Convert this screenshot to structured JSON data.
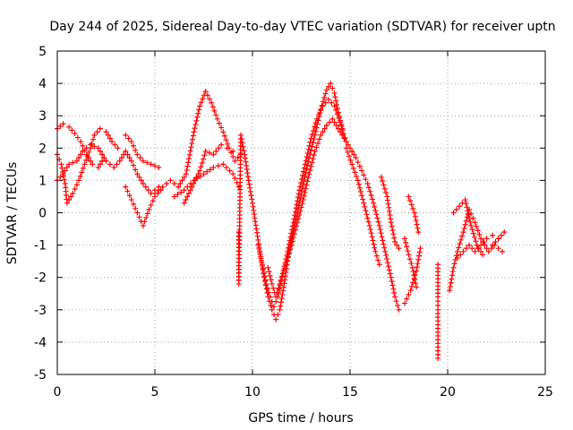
{
  "chart_data": {
    "type": "scatter",
    "title": "Day 244 of 2025, Sidereal Day-to-day VTEC variation (SDTVAR) for receiver uptn",
    "xlabel": "GPS time / hours",
    "ylabel": "SDTVAR / TECUs",
    "xlim": [
      0,
      25
    ],
    "ylim": [
      -5,
      5
    ],
    "xticks": [
      "0",
      "5",
      "10",
      "15",
      "20",
      "25"
    ],
    "yticks": [
      "-5",
      "-4",
      "-3",
      "-2",
      "-1",
      "0",
      "1",
      "2",
      "3",
      "4",
      "5"
    ],
    "grid": true,
    "marker": "+",
    "color": "#ff0000",
    "series": [
      {
        "name": "trace-1",
        "points": [
          [
            0.0,
            1.0
          ],
          [
            0.3,
            1.2
          ],
          [
            0.6,
            1.5
          ],
          [
            1.0,
            1.6
          ],
          [
            1.3,
            1.9
          ],
          [
            1.7,
            2.1
          ],
          [
            2.1,
            2.0
          ],
          [
            2.5,
            1.6
          ],
          [
            2.9,
            1.4
          ],
          [
            3.2,
            1.6
          ],
          [
            3.5,
            1.9
          ],
          [
            3.8,
            1.6
          ],
          [
            4.1,
            1.2
          ],
          [
            4.4,
            0.9
          ],
          [
            4.8,
            0.6
          ],
          [
            5.2,
            0.8
          ]
        ]
      },
      {
        "name": "trace-2",
        "points": [
          [
            0.0,
            2.6
          ],
          [
            0.3,
            2.75
          ],
          [
            0.6,
            2.65
          ],
          [
            0.9,
            2.45
          ],
          [
            1.2,
            2.2
          ],
          [
            1.5,
            1.8
          ],
          [
            1.8,
            1.5
          ],
          [
            2.1,
            1.4
          ],
          [
            2.4,
            1.7
          ]
        ]
      },
      {
        "name": "trace-3",
        "points": [
          [
            0.0,
            1.8
          ],
          [
            0.2,
            1.5
          ],
          [
            0.4,
            0.9
          ],
          [
            0.5,
            0.3
          ],
          [
            0.8,
            0.6
          ],
          [
            1.1,
            1.0
          ],
          [
            1.4,
            1.5
          ],
          [
            1.7,
            2.0
          ],
          [
            1.9,
            2.4
          ],
          [
            2.2,
            2.6
          ],
          [
            2.5,
            2.5
          ],
          [
            2.8,
            2.2
          ],
          [
            3.1,
            2.0
          ]
        ]
      },
      {
        "name": "trace-4",
        "points": [
          [
            3.5,
            2.4
          ],
          [
            3.8,
            2.2
          ],
          [
            4.1,
            1.8
          ],
          [
            4.4,
            1.6
          ],
          [
            4.8,
            1.5
          ],
          [
            5.2,
            1.4
          ]
        ]
      },
      {
        "name": "trace-5",
        "points": [
          [
            3.5,
            0.8
          ],
          [
            3.8,
            0.4
          ],
          [
            4.1,
            0.0
          ],
          [
            4.4,
            -0.4
          ],
          [
            4.7,
            0.1
          ],
          [
            5.0,
            0.5
          ],
          [
            5.3,
            0.7
          ]
        ]
      },
      {
        "name": "trace-6",
        "points": [
          [
            5.0,
            0.6
          ],
          [
            5.4,
            0.8
          ],
          [
            5.8,
            1.0
          ],
          [
            6.2,
            0.8
          ],
          [
            6.6,
            1.2
          ],
          [
            7.0,
            2.5
          ],
          [
            7.3,
            3.3
          ],
          [
            7.6,
            3.75
          ],
          [
            7.9,
            3.4
          ],
          [
            8.2,
            2.9
          ],
          [
            8.5,
            2.5
          ],
          [
            8.8,
            2.0
          ],
          [
            9.1,
            1.6
          ],
          [
            9.4,
            1.8
          ]
        ]
      },
      {
        "name": "trace-7",
        "points": [
          [
            6.5,
            0.3
          ],
          [
            6.9,
            0.8
          ],
          [
            7.3,
            1.3
          ],
          [
            7.6,
            1.9
          ],
          [
            8.0,
            1.8
          ],
          [
            8.4,
            2.1
          ],
          [
            8.7,
            2.0
          ],
          [
            9.0,
            1.9
          ]
        ]
      },
      {
        "name": "trace-8",
        "points": [
          [
            6.0,
            0.5
          ],
          [
            6.5,
            0.7
          ],
          [
            7.0,
            1.0
          ],
          [
            7.5,
            1.2
          ],
          [
            8.0,
            1.4
          ],
          [
            8.5,
            1.5
          ],
          [
            9.0,
            1.2
          ],
          [
            9.3,
            0.8
          ]
        ]
      },
      {
        "name": "trace-9",
        "points": [
          [
            9.3,
            -0.6
          ],
          [
            9.3,
            -1.3
          ],
          [
            9.3,
            -2.2
          ],
          [
            9.4,
            2.4
          ],
          [
            9.6,
            1.8
          ],
          [
            9.8,
            1.0
          ],
          [
            10.0,
            0.3
          ],
          [
            10.2,
            -0.5
          ],
          [
            10.4,
            -1.3
          ],
          [
            10.6,
            -2.0
          ],
          [
            10.8,
            -2.6
          ],
          [
            11.0,
            -3.0
          ],
          [
            11.2,
            -3.3
          ],
          [
            11.4,
            -3.0
          ],
          [
            11.6,
            -2.3
          ],
          [
            11.8,
            -1.5
          ],
          [
            12.0,
            -0.8
          ],
          [
            12.3,
            0.0
          ],
          [
            12.6,
            0.9
          ],
          [
            12.9,
            1.7
          ],
          [
            13.2,
            2.4
          ],
          [
            13.5,
            3.2
          ],
          [
            13.8,
            3.8
          ],
          [
            14.0,
            4.0
          ],
          [
            14.2,
            3.7
          ],
          [
            14.4,
            3.1
          ],
          [
            14.6,
            2.6
          ]
        ]
      },
      {
        "name": "trace-10",
        "points": [
          [
            10.3,
            -1.0
          ],
          [
            10.5,
            -1.6
          ],
          [
            10.7,
            -2.2
          ],
          [
            10.9,
            -2.6
          ],
          [
            11.1,
            -2.9
          ],
          [
            11.3,
            -2.6
          ],
          [
            11.5,
            -2.0
          ],
          [
            11.8,
            -1.2
          ],
          [
            12.1,
            -0.3
          ],
          [
            12.4,
            0.7
          ],
          [
            12.7,
            1.5
          ],
          [
            13.0,
            2.3
          ],
          [
            13.3,
            2.9
          ],
          [
            13.6,
            3.3
          ],
          [
            13.9,
            3.5
          ],
          [
            14.2,
            3.3
          ],
          [
            14.5,
            2.8
          ],
          [
            14.8,
            2.2
          ]
        ]
      },
      {
        "name": "trace-11",
        "points": [
          [
            10.8,
            -1.7
          ],
          [
            11.0,
            -2.2
          ],
          [
            11.2,
            -2.6
          ],
          [
            11.4,
            -2.2
          ],
          [
            11.7,
            -1.6
          ],
          [
            12.0,
            -1.0
          ],
          [
            12.3,
            -0.3
          ],
          [
            12.6,
            0.4
          ],
          [
            12.9,
            1.2
          ],
          [
            13.2,
            1.9
          ],
          [
            13.5,
            2.4
          ],
          [
            13.8,
            2.7
          ],
          [
            14.1,
            2.9
          ],
          [
            14.4,
            2.6
          ],
          [
            14.7,
            2.3
          ],
          [
            15.0,
            2.0
          ],
          [
            15.3,
            1.7
          ],
          [
            15.6,
            1.3
          ],
          [
            15.9,
            0.9
          ],
          [
            16.2,
            0.3
          ],
          [
            16.5,
            -0.4
          ],
          [
            16.8,
            -1.2
          ],
          [
            17.1,
            -2.0
          ],
          [
            17.3,
            -2.6
          ],
          [
            17.5,
            -3.0
          ]
        ]
      },
      {
        "name": "trace-12",
        "points": [
          [
            14.8,
            2.0
          ],
          [
            15.1,
            1.5
          ],
          [
            15.4,
            1.0
          ],
          [
            15.7,
            0.3
          ],
          [
            16.0,
            -0.4
          ],
          [
            16.3,
            -1.2
          ],
          [
            16.5,
            -1.6
          ]
        ]
      },
      {
        "name": "trace-13",
        "points": [
          [
            16.6,
            1.1
          ],
          [
            16.9,
            0.5
          ],
          [
            17.1,
            -0.3
          ],
          [
            17.3,
            -0.9
          ],
          [
            17.5,
            -1.1
          ]
        ]
      },
      {
        "name": "trace-14",
        "points": [
          [
            17.8,
            -0.8
          ],
          [
            18.0,
            -1.3
          ],
          [
            18.2,
            -1.7
          ],
          [
            18.4,
            -2.3
          ]
        ]
      },
      {
        "name": "trace-15",
        "points": [
          [
            17.8,
            -2.8
          ],
          [
            18.1,
            -2.4
          ],
          [
            18.4,
            -1.8
          ],
          [
            18.6,
            -1.1
          ]
        ]
      },
      {
        "name": "trace-16",
        "points": [
          [
            18.0,
            0.5
          ],
          [
            18.3,
            0.0
          ],
          [
            18.5,
            -0.6
          ]
        ]
      },
      {
        "name": "trace-17",
        "points": [
          [
            19.5,
            -1.6
          ],
          [
            19.5,
            -2.6
          ],
          [
            19.5,
            -3.0
          ],
          [
            19.5,
            -4.5
          ]
        ]
      },
      {
        "name": "trace-18",
        "points": [
          [
            20.1,
            -2.4
          ],
          [
            20.3,
            -1.7
          ],
          [
            20.5,
            -1.2
          ],
          [
            20.8,
            -0.6
          ],
          [
            21.1,
            0.1
          ],
          [
            21.4,
            -0.3
          ],
          [
            21.7,
            -0.8
          ],
          [
            22.0,
            -1.1
          ],
          [
            22.3,
            -1.0
          ],
          [
            22.6,
            -0.8
          ],
          [
            22.9,
            -0.6
          ]
        ]
      },
      {
        "name": "trace-19",
        "points": [
          [
            20.3,
            0.0
          ],
          [
            20.6,
            0.2
          ],
          [
            20.9,
            0.4
          ],
          [
            21.2,
            -0.4
          ],
          [
            21.5,
            -1.0
          ],
          [
            21.8,
            -1.3
          ],
          [
            22.1,
            -1.2
          ],
          [
            22.4,
            -1.0
          ],
          [
            22.8,
            -1.2
          ]
        ]
      },
      {
        "name": "trace-20",
        "points": [
          [
            20.5,
            -1.4
          ],
          [
            20.8,
            -1.2
          ],
          [
            21.1,
            -1.0
          ],
          [
            21.4,
            -1.2
          ],
          [
            21.7,
            -1.0
          ],
          [
            22.0,
            -0.8
          ],
          [
            22.3,
            -0.7
          ],
          [
            22.6,
            -0.8
          ]
        ]
      }
    ]
  }
}
